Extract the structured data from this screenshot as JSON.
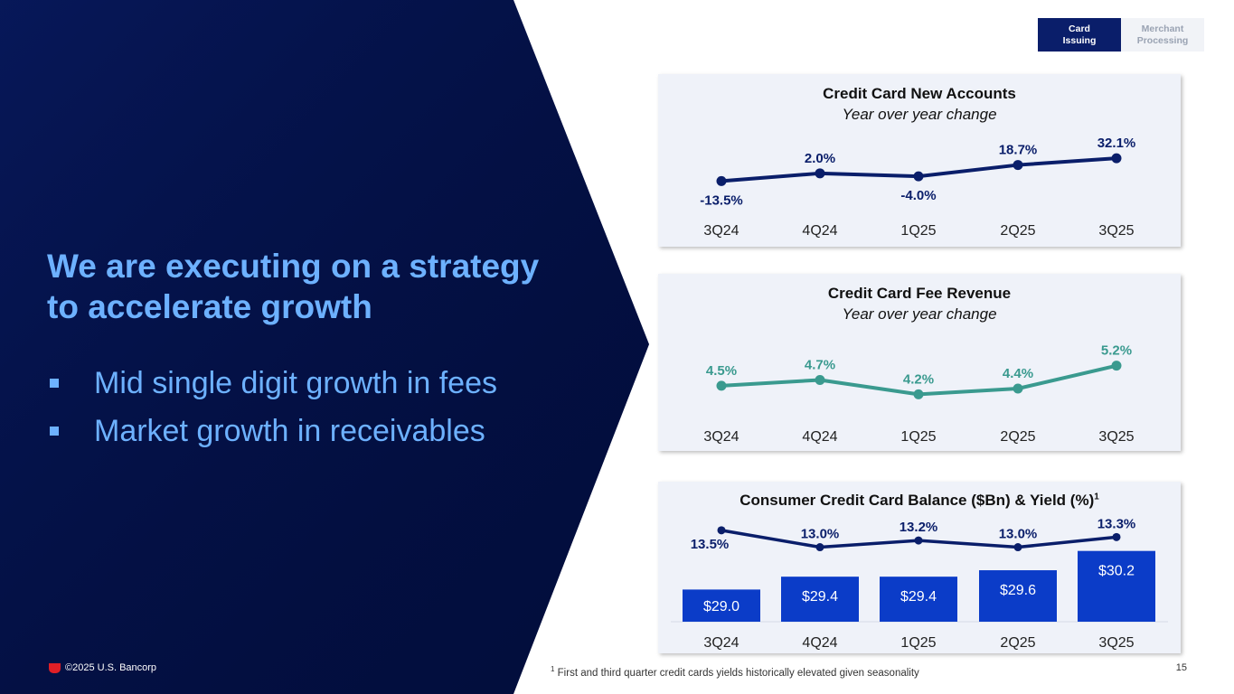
{
  "tabs": [
    {
      "label": "Card Issuing",
      "line1": "Card",
      "line2": "Issuing",
      "active": true
    },
    {
      "label": "Merchant Processing",
      "line1": "Merchant",
      "line2": "Processing",
      "active": false
    }
  ],
  "headline": {
    "line1": "We are executing on a strategy",
    "line2": "to accelerate growth"
  },
  "bullets": [
    "Mid single digit growth in fees",
    "Market growth in receivables"
  ],
  "footer": {
    "copyright": "©2025 U.S. Bancorp",
    "footnote_marker": "1",
    "footnote": "First and third quarter credit cards yields historically elevated given seasonality",
    "page_number": "15"
  },
  "colors": {
    "navy": "#0a1e6a",
    "dark_bg": "#020e3f",
    "accent_blue": "#6db1ff",
    "teal": "#3a9a8f",
    "bar_blue": "#0b3cc8",
    "panel_bg": "#eff2f9"
  },
  "chart_data": [
    {
      "type": "line",
      "title": "Credit Card New Accounts",
      "subtitle": "Year over year change",
      "categories": [
        "3Q24",
        "4Q24",
        "1Q25",
        "2Q25",
        "3Q25"
      ],
      "values": [
        -13.5,
        2.0,
        -4.0,
        18.7,
        32.1
      ],
      "labels": [
        "-13.5%",
        "2.0%",
        "-4.0%",
        "18.7%",
        "32.1%"
      ],
      "ylim": [
        -20,
        45
      ],
      "color": "#0a1e6a"
    },
    {
      "type": "line",
      "title": "Credit Card Fee Revenue",
      "subtitle": "Year over year change",
      "categories": [
        "3Q24",
        "4Q24",
        "1Q25",
        "2Q25",
        "3Q25"
      ],
      "values": [
        4.5,
        4.7,
        4.2,
        4.4,
        5.2
      ],
      "labels": [
        "4.5%",
        "4.7%",
        "4.2%",
        "4.4%",
        "5.2%"
      ],
      "ylim": [
        3.8,
        5.6
      ],
      "color": "#3a9a8f"
    },
    {
      "type": "bar+line",
      "title": "Consumer Credit Card Balance ($Bn) & Yield (%)",
      "title_marker": "1",
      "categories": [
        "3Q24",
        "4Q24",
        "1Q25",
        "2Q25",
        "3Q25"
      ],
      "bars": {
        "name": "Balance ($Bn)",
        "values": [
          29.0,
          29.4,
          29.4,
          29.6,
          30.2
        ],
        "labels": [
          "$29.0",
          "$29.4",
          "$29.4",
          "$29.6",
          "$30.2"
        ],
        "ylim": [
          28.0,
          30.5
        ],
        "color": "#0b3cc8"
      },
      "line": {
        "name": "Yield (%)",
        "values": [
          13.5,
          13.0,
          13.2,
          13.0,
          13.3
        ],
        "labels": [
          "13.5%",
          "13.0%",
          "13.2%",
          "13.0%",
          "13.3%"
        ],
        "ylim": [
          12.8,
          13.55
        ],
        "color": "#0a1e6a"
      }
    }
  ]
}
